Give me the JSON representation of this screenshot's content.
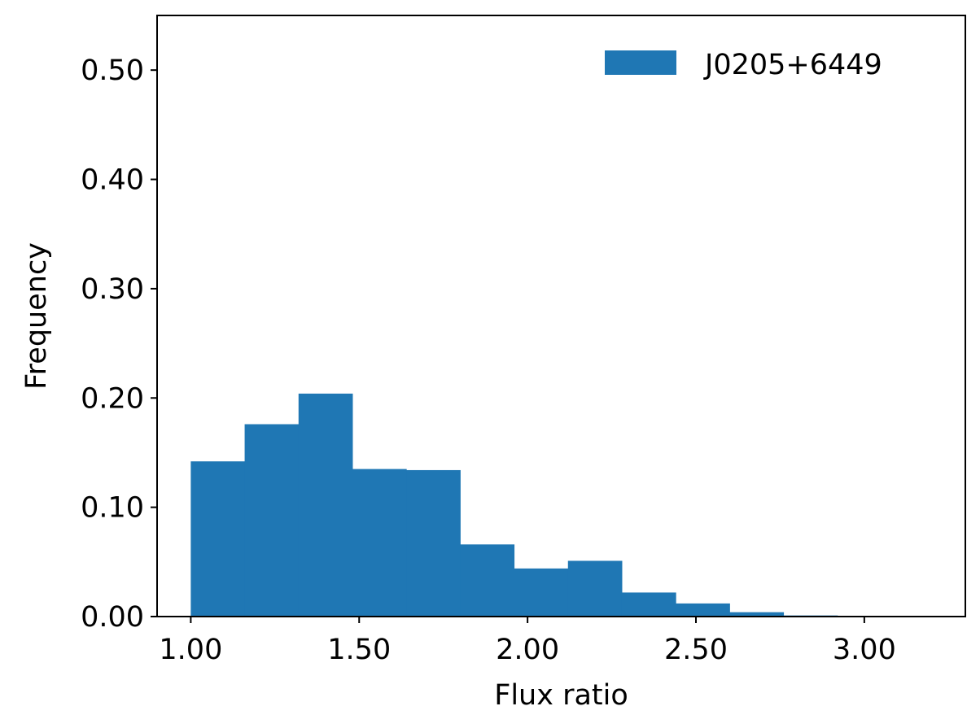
{
  "chart_data": {
    "type": "bar",
    "subtype": "histogram",
    "title": "",
    "xlabel": "Flux ratio",
    "ylabel": "Frequency",
    "xlim": [
      0.9,
      3.3
    ],
    "ylim": [
      0.0,
      0.55
    ],
    "grid": false,
    "legend_position": "top-right",
    "x_ticks": [
      1.0,
      1.5,
      2.0,
      2.5,
      3.0
    ],
    "x_tick_labels": [
      "1.00",
      "1.50",
      "2.00",
      "2.50",
      "3.00"
    ],
    "y_ticks": [
      0.0,
      0.1,
      0.2,
      0.3,
      0.4,
      0.5
    ],
    "y_tick_labels": [
      "0.00",
      "0.10",
      "0.20",
      "0.30",
      "0.40",
      "0.50"
    ],
    "bin_edges": [
      1.0,
      1.16,
      1.32,
      1.48,
      1.64,
      1.8,
      1.96,
      2.12,
      2.28,
      2.44,
      2.6,
      2.76,
      2.92,
      3.08,
      3.24
    ],
    "series": [
      {
        "name": "J0205+6449",
        "color": "#1f77b4",
        "values": [
          0.142,
          0.176,
          0.204,
          0.135,
          0.134,
          0.066,
          0.044,
          0.051,
          0.022,
          0.012,
          0.004,
          0.001,
          0.0005,
          0.0003
        ]
      }
    ]
  }
}
